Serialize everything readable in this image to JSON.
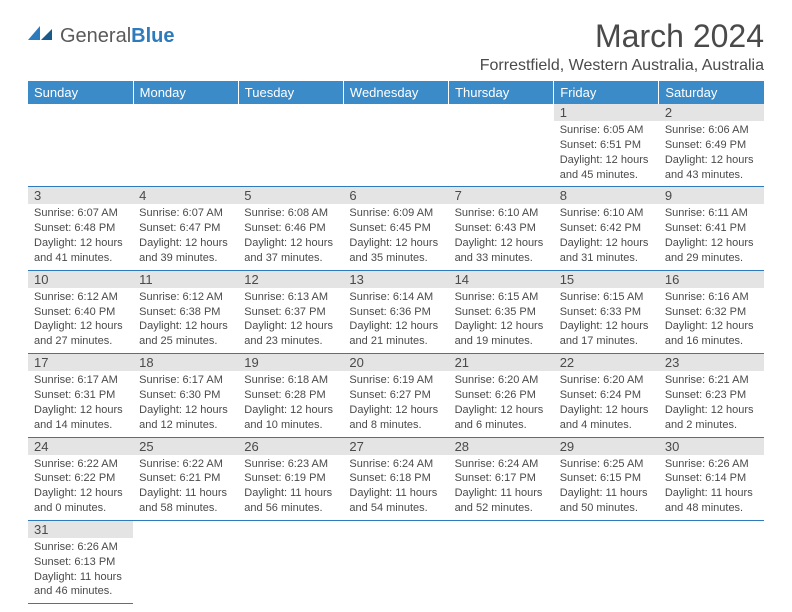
{
  "brand": {
    "part1": "General",
    "part2": "Blue"
  },
  "title": "March 2024",
  "location": "Forrestfield, Western Australia, Australia",
  "colors": {
    "header_bg": "#3b8bc8",
    "day_bg": "#e4e4e4",
    "rule": "#2d7bbd",
    "text": "#4a4a4a"
  },
  "weekdays": [
    "Sunday",
    "Monday",
    "Tuesday",
    "Wednesday",
    "Thursday",
    "Friday",
    "Saturday"
  ],
  "weeks": [
    [
      null,
      null,
      null,
      null,
      null,
      {
        "d": "1",
        "sr": "6:05 AM",
        "ss": "6:51 PM",
        "dl": "12 hours and 45 minutes."
      },
      {
        "d": "2",
        "sr": "6:06 AM",
        "ss": "6:49 PM",
        "dl": "12 hours and 43 minutes."
      }
    ],
    [
      {
        "d": "3",
        "sr": "6:07 AM",
        "ss": "6:48 PM",
        "dl": "12 hours and 41 minutes."
      },
      {
        "d": "4",
        "sr": "6:07 AM",
        "ss": "6:47 PM",
        "dl": "12 hours and 39 minutes."
      },
      {
        "d": "5",
        "sr": "6:08 AM",
        "ss": "6:46 PM",
        "dl": "12 hours and 37 minutes."
      },
      {
        "d": "6",
        "sr": "6:09 AM",
        "ss": "6:45 PM",
        "dl": "12 hours and 35 minutes."
      },
      {
        "d": "7",
        "sr": "6:10 AM",
        "ss": "6:43 PM",
        "dl": "12 hours and 33 minutes."
      },
      {
        "d": "8",
        "sr": "6:10 AM",
        "ss": "6:42 PM",
        "dl": "12 hours and 31 minutes."
      },
      {
        "d": "9",
        "sr": "6:11 AM",
        "ss": "6:41 PM",
        "dl": "12 hours and 29 minutes."
      }
    ],
    [
      {
        "d": "10",
        "sr": "6:12 AM",
        "ss": "6:40 PM",
        "dl": "12 hours and 27 minutes."
      },
      {
        "d": "11",
        "sr": "6:12 AM",
        "ss": "6:38 PM",
        "dl": "12 hours and 25 minutes."
      },
      {
        "d": "12",
        "sr": "6:13 AM",
        "ss": "6:37 PM",
        "dl": "12 hours and 23 minutes."
      },
      {
        "d": "13",
        "sr": "6:14 AM",
        "ss": "6:36 PM",
        "dl": "12 hours and 21 minutes."
      },
      {
        "d": "14",
        "sr": "6:15 AM",
        "ss": "6:35 PM",
        "dl": "12 hours and 19 minutes."
      },
      {
        "d": "15",
        "sr": "6:15 AM",
        "ss": "6:33 PM",
        "dl": "12 hours and 17 minutes."
      },
      {
        "d": "16",
        "sr": "6:16 AM",
        "ss": "6:32 PM",
        "dl": "12 hours and 16 minutes."
      }
    ],
    [
      {
        "d": "17",
        "sr": "6:17 AM",
        "ss": "6:31 PM",
        "dl": "12 hours and 14 minutes."
      },
      {
        "d": "18",
        "sr": "6:17 AM",
        "ss": "6:30 PM",
        "dl": "12 hours and 12 minutes."
      },
      {
        "d": "19",
        "sr": "6:18 AM",
        "ss": "6:28 PM",
        "dl": "12 hours and 10 minutes."
      },
      {
        "d": "20",
        "sr": "6:19 AM",
        "ss": "6:27 PM",
        "dl": "12 hours and 8 minutes."
      },
      {
        "d": "21",
        "sr": "6:20 AM",
        "ss": "6:26 PM",
        "dl": "12 hours and 6 minutes."
      },
      {
        "d": "22",
        "sr": "6:20 AM",
        "ss": "6:24 PM",
        "dl": "12 hours and 4 minutes."
      },
      {
        "d": "23",
        "sr": "6:21 AM",
        "ss": "6:23 PM",
        "dl": "12 hours and 2 minutes."
      }
    ],
    [
      {
        "d": "24",
        "sr": "6:22 AM",
        "ss": "6:22 PM",
        "dl": "12 hours and 0 minutes."
      },
      {
        "d": "25",
        "sr": "6:22 AM",
        "ss": "6:21 PM",
        "dl": "11 hours and 58 minutes."
      },
      {
        "d": "26",
        "sr": "6:23 AM",
        "ss": "6:19 PM",
        "dl": "11 hours and 56 minutes."
      },
      {
        "d": "27",
        "sr": "6:24 AM",
        "ss": "6:18 PM",
        "dl": "11 hours and 54 minutes."
      },
      {
        "d": "28",
        "sr": "6:24 AM",
        "ss": "6:17 PM",
        "dl": "11 hours and 52 minutes."
      },
      {
        "d": "29",
        "sr": "6:25 AM",
        "ss": "6:15 PM",
        "dl": "11 hours and 50 minutes."
      },
      {
        "d": "30",
        "sr": "6:26 AM",
        "ss": "6:14 PM",
        "dl": "11 hours and 48 minutes."
      }
    ],
    [
      {
        "d": "31",
        "sr": "6:26 AM",
        "ss": "6:13 PM",
        "dl": "11 hours and 46 minutes."
      },
      null,
      null,
      null,
      null,
      null,
      null
    ]
  ],
  "labels": {
    "sunrise": "Sunrise:",
    "sunset": "Sunset:",
    "daylight": "Daylight:"
  }
}
